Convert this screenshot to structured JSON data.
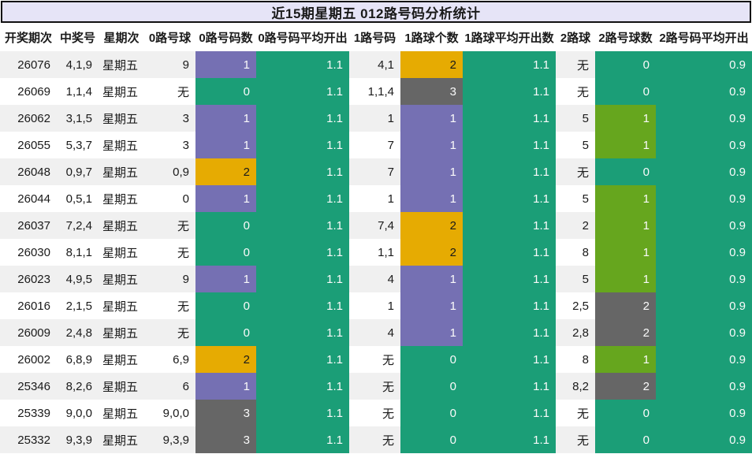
{
  "title": "近15期星期五 012路号码分析统计",
  "chart_data": {
    "type": "table",
    "title": "近15期星期五 012路号码分析统计",
    "columns": [
      "开奖期次",
      "中奖号",
      "星期次",
      "0路号球",
      "0路号码数",
      "0路号码平均开出",
      "1路号码",
      "1路球个数",
      "1路球平均开出数",
      "2路球",
      "2路号球数",
      "2路号码平均开出"
    ],
    "rows": [
      [
        "26076",
        "4,1,9",
        "星期五",
        "9",
        "1",
        "1.1",
        "4,1",
        "2",
        "1.1",
        "无",
        "0",
        "0.9"
      ],
      [
        "26069",
        "1,1,4",
        "星期五",
        "无",
        "0",
        "1.1",
        "1,1,4",
        "3",
        "1.1",
        "无",
        "0",
        "0.9"
      ],
      [
        "26062",
        "3,1,5",
        "星期五",
        "3",
        "1",
        "1.1",
        "1",
        "1",
        "1.1",
        "5",
        "1",
        "0.9"
      ],
      [
        "26055",
        "5,3,7",
        "星期五",
        "3",
        "1",
        "1.1",
        "7",
        "1",
        "1.1",
        "5",
        "1",
        "0.9"
      ],
      [
        "26048",
        "0,9,7",
        "星期五",
        "0,9",
        "2",
        "1.1",
        "7",
        "1",
        "1.1",
        "无",
        "0",
        "0.9"
      ],
      [
        "26044",
        "0,5,1",
        "星期五",
        "0",
        "1",
        "1.1",
        "1",
        "1",
        "1.1",
        "5",
        "1",
        "0.9"
      ],
      [
        "26037",
        "7,2,4",
        "星期五",
        "无",
        "0",
        "1.1",
        "7,4",
        "2",
        "1.1",
        "2",
        "1",
        "0.9"
      ],
      [
        "26030",
        "8,1,1",
        "星期五",
        "无",
        "0",
        "1.1",
        "1,1",
        "2",
        "1.1",
        "8",
        "1",
        "0.9"
      ],
      [
        "26023",
        "4,9,5",
        "星期五",
        "9",
        "1",
        "1.1",
        "4",
        "1",
        "1.1",
        "5",
        "1",
        "0.9"
      ],
      [
        "26016",
        "2,1,5",
        "星期五",
        "无",
        "0",
        "1.1",
        "1",
        "1",
        "1.1",
        "2,5",
        "2",
        "0.9"
      ],
      [
        "26009",
        "2,4,8",
        "星期五",
        "无",
        "0",
        "1.1",
        "4",
        "1",
        "1.1",
        "2,8",
        "2",
        "0.9"
      ],
      [
        "26002",
        "6,8,9",
        "星期五",
        "6,9",
        "2",
        "1.1",
        "无",
        "0",
        "1.1",
        "8",
        "1",
        "0.9"
      ],
      [
        "25346",
        "8,2,6",
        "星期五",
        "6",
        "1",
        "1.1",
        "无",
        "0",
        "1.1",
        "8,2",
        "2",
        "0.9"
      ],
      [
        "25339",
        "9,0,0",
        "星期五",
        "9,0,0",
        "3",
        "1.1",
        "无",
        "0",
        "1.1",
        "无",
        "0",
        "0.9"
      ],
      [
        "25332",
        "9,3,9",
        "星期五",
        "9,3,9",
        "3",
        "1.1",
        "无",
        "0",
        "1.1",
        "无",
        "0",
        "0.9"
      ]
    ]
  },
  "colors": {
    "teal": "#1b9e77",
    "purple": "#7570b3",
    "gold": "#e6ab02",
    "gray": "#666666",
    "green": "#66a61e",
    "title_bg": "#e6e4f7",
    "stripe_bg": "#f0f0f0",
    "text_on_dark": "#fafafa",
    "text_on_gold": "#1a1a1a"
  },
  "palettes": {
    "road0_count": {
      "0": "teal",
      "1": "purple",
      "2": "gold",
      "3": "gray"
    },
    "road1_count": {
      "0": "teal",
      "1": "purple",
      "2": "gold",
      "3": "gray"
    },
    "road2_count": {
      "0": "teal",
      "1": "green",
      "2": "gray"
    }
  }
}
